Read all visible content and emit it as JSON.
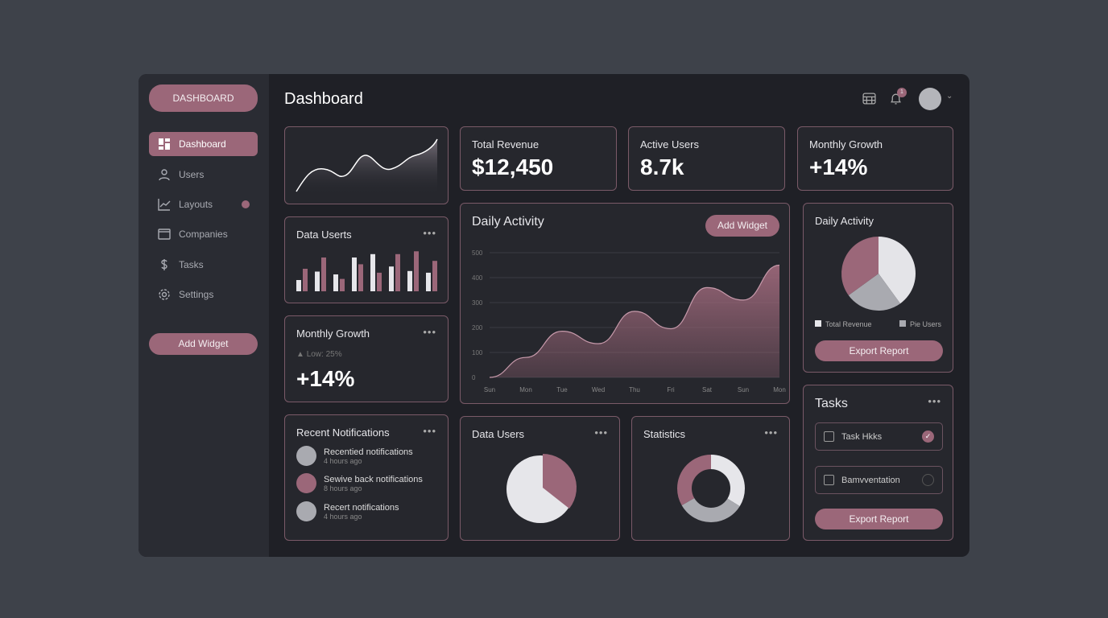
{
  "sidebar": {
    "brand": "DASHBOARD",
    "items": [
      {
        "label": "Dashboard",
        "icon": "grid-icon"
      },
      {
        "label": "Users",
        "icon": "user-icon"
      },
      {
        "label": "Layouts",
        "icon": "chart-line-icon"
      },
      {
        "label": "Companies",
        "icon": "card-icon"
      },
      {
        "label": "Tasks",
        "icon": "dollar-icon"
      },
      {
        "label": "Settings",
        "icon": "gear-icon"
      }
    ],
    "add_widget": "Add Widget"
  },
  "header": {
    "title": "Dashboard",
    "notification_count": "1"
  },
  "stats": [
    {
      "label": "Total Revenue",
      "value": "$12,450"
    },
    {
      "label": "Active Users",
      "value": "8.7k"
    },
    {
      "label": "Monthly Growth",
      "value": "+14%"
    }
  ],
  "data_userts": {
    "title": "Data Userts",
    "bars": [
      [
        20,
        40
      ],
      [
        35,
        60
      ],
      [
        30,
        22
      ],
      [
        60,
        48
      ],
      [
        66,
        33
      ],
      [
        44,
        66
      ],
      [
        36,
        71
      ],
      [
        33,
        54
      ]
    ]
  },
  "monthly_growth": {
    "title": "Monthly Growth",
    "sub": "Low: 25%",
    "value": "+14%"
  },
  "notifications": {
    "title": "Recent Notifications",
    "items": [
      {
        "text": "Recentied notifications",
        "time": "4 hours ago",
        "color": "#a9aab0"
      },
      {
        "text": "Sewive back notifications",
        "time": "8 hours ago",
        "color": "#9b6779"
      },
      {
        "text": "Recert notifications",
        "time": "4 hours ago",
        "color": "#a9aab0"
      }
    ]
  },
  "daily_activity": {
    "title": "Daily Activity",
    "button": "Add Widget"
  },
  "chart_data": [
    {
      "type": "area",
      "x": [
        "Sun",
        "Mon",
        "Tue",
        "Wed",
        "Thu",
        "Fri",
        "Sat",
        "Sun",
        "Mon"
      ],
      "values": [
        0,
        80,
        185,
        135,
        265,
        195,
        360,
        310,
        450
      ],
      "ylim": [
        0,
        500
      ],
      "yticks": [
        0,
        100,
        200,
        300,
        400,
        500
      ],
      "grid": true,
      "color": "#9b6779"
    },
    {
      "type": "pie",
      "title": "Daily Activity",
      "legend": [
        "Total Revenue",
        "Pie Users"
      ],
      "values": [
        40,
        25,
        35
      ],
      "colors": [
        "#e4e4e8",
        "#a9aab0",
        "#9b6779"
      ]
    }
  ],
  "pie_card": {
    "title": "Daily Activity",
    "legend": [
      "Total Revenue",
      "Pie Users"
    ],
    "button": "Export Report"
  },
  "data_users": {
    "title": "Data Users"
  },
  "statistics": {
    "title": "Statistics"
  },
  "tasks": {
    "title": "Tasks",
    "items": [
      {
        "label": "Task Hkks",
        "done": true
      },
      {
        "label": "Bamvventation",
        "done": false
      }
    ],
    "button": "Export Report"
  }
}
